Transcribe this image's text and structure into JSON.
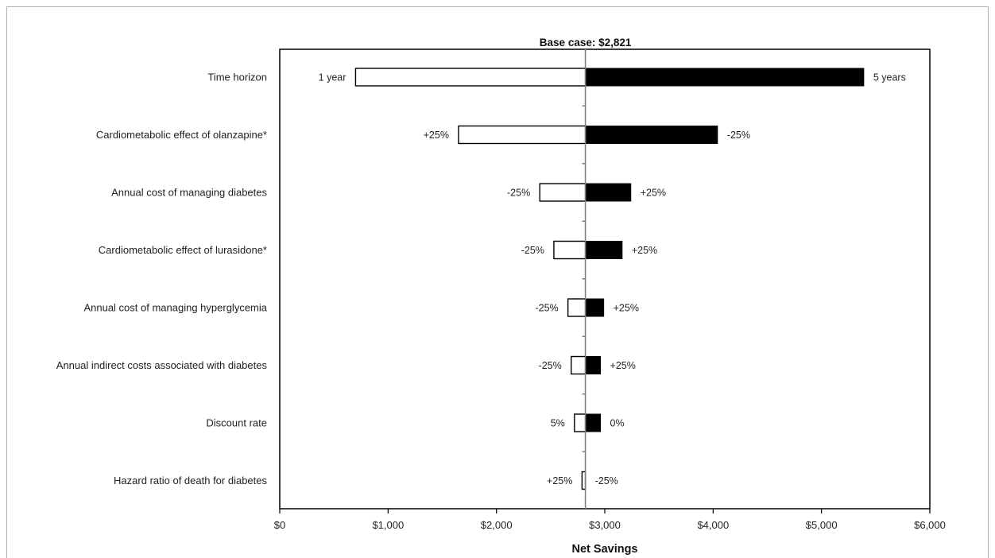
{
  "chart_data": {
    "type": "bar",
    "orientation": "horizontal",
    "chart_style": "tornado",
    "title": "Base case: $2,821",
    "xlabel": "Net Savings",
    "base_case": 2821,
    "xlim": [
      0,
      6000
    ],
    "x_ticks": [
      0,
      1000,
      2000,
      3000,
      4000,
      5000,
      6000
    ],
    "x_tick_labels": [
      "$0",
      "$1,000",
      "$2,000",
      "$3,000",
      "$4,000",
      "$5,000",
      "$6,000"
    ],
    "grid": false,
    "low_bar_color": "#ffffff",
    "high_bar_color": "#000000",
    "categories": [
      "Time horizon",
      "Cardiometabolic effect of olanzapine*",
      "Annual cost of managing diabetes",
      "Cardiometabolic effect of lurasidone*",
      "Annual cost of managing hyperglycemia",
      "Annual indirect costs associated with diabetes",
      "Discount rate",
      "Hazard ratio of death for diabetes"
    ],
    "series": [
      {
        "fill": "white",
        "values": [
          700,
          1650,
          2400,
          2530,
          2660,
          2690,
          2720,
          2790
        ],
        "labels": [
          "1 year",
          "+25%",
          "-25%",
          "-25%",
          "-25%",
          "-25%",
          "5%",
          "+25%"
        ]
      },
      {
        "fill": "black",
        "values": [
          5390,
          4040,
          3240,
          3160,
          2990,
          2960,
          2960,
          2821
        ],
        "labels": [
          "5 years",
          "-25%",
          "+25%",
          "+25%",
          "+25%",
          "+25%",
          "0%",
          "-25%"
        ]
      }
    ]
  }
}
